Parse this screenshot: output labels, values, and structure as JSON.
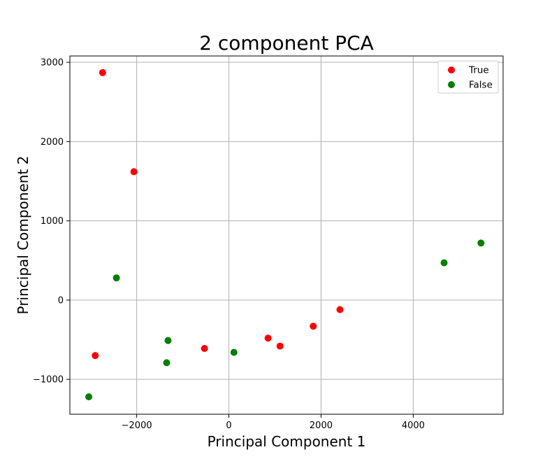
{
  "chart_data": {
    "type": "scatter",
    "title": "2 component PCA",
    "xlabel": "Principal Component 1",
    "ylabel": "Principal Component 2",
    "xlim": [
      -3450,
      5950
    ],
    "ylim": [
      -1440,
      3080
    ],
    "xticks": [
      -2000,
      0,
      2000,
      4000
    ],
    "yticks": [
      -1000,
      0,
      1000,
      2000,
      3000
    ],
    "xtick_labels": [
      "−2000",
      "0",
      "2000",
      "4000"
    ],
    "ytick_labels": [
      "−1000",
      "0",
      "1000",
      "2000",
      "3000"
    ],
    "grid": true,
    "legend_position": "top-right",
    "series": [
      {
        "name": "True",
        "color": "#ff0000",
        "points": [
          {
            "x": -2740,
            "y": 2870
          },
          {
            "x": -2060,
            "y": 1620
          },
          {
            "x": -2900,
            "y": -700
          },
          {
            "x": -530,
            "y": -610
          },
          {
            "x": 850,
            "y": -480
          },
          {
            "x": 1110,
            "y": -580
          },
          {
            "x": 1830,
            "y": -330
          },
          {
            "x": 2410,
            "y": -120
          }
        ]
      },
      {
        "name": "False",
        "color": "#008000",
        "points": [
          {
            "x": -2440,
            "y": 280
          },
          {
            "x": -1320,
            "y": -510
          },
          {
            "x": -1350,
            "y": -790
          },
          {
            "x": -3040,
            "y": -1220
          },
          {
            "x": 110,
            "y": -660
          },
          {
            "x": 4670,
            "y": 470
          },
          {
            "x": 5470,
            "y": 720
          }
        ]
      }
    ]
  }
}
